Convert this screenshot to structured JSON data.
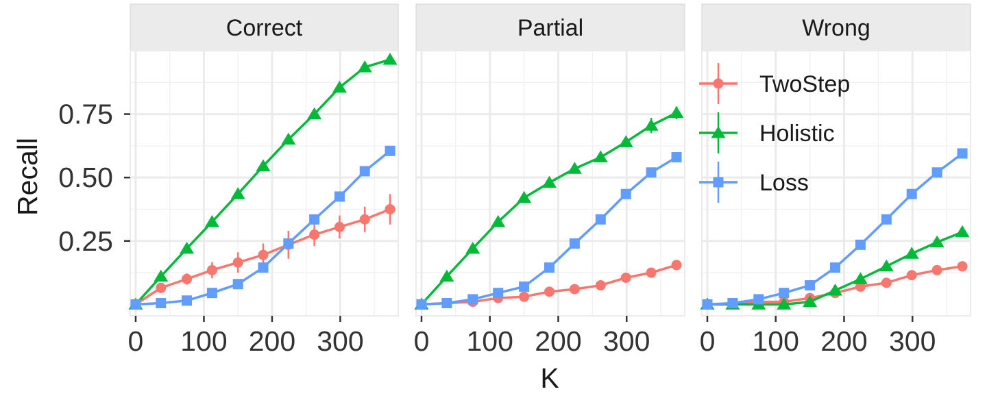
{
  "chart_data": {
    "type": "line",
    "xlabel": "K",
    "ylabel": "Recall",
    "xlim": [
      -8,
      385
    ],
    "ylim": [
      -0.045,
      1.0
    ],
    "x_ticks": [
      0,
      100,
      200,
      300
    ],
    "x_tick_labels": [
      "0",
      "100",
      "200",
      "300"
    ],
    "y_ticks": [
      0.25,
      0.5,
      0.75
    ],
    "y_tick_labels": [
      "0.25",
      "0.50",
      "0.75"
    ],
    "grid": true,
    "legend_position": "inside-right",
    "legend": [
      {
        "name": "TwoStep",
        "color": "#F8766D",
        "marker": "circle"
      },
      {
        "name": "Holistic",
        "color": "#00BA38",
        "marker": "triangle"
      },
      {
        "name": "Loss",
        "color": "#619CFF",
        "marker": "square"
      }
    ],
    "x": [
      0,
      37,
      75,
      112,
      150,
      187,
      224,
      262,
      299,
      336,
      373
    ],
    "panels": [
      {
        "title": "Correct",
        "series": [
          {
            "name": "TwoStep",
            "values": [
              0.0,
              0.065,
              0.1,
              0.135,
              0.165,
              0.195,
              0.235,
              0.275,
              0.305,
              0.335,
              0.375
            ],
            "error": [
              0.0,
              0.012,
              0.022,
              0.032,
              0.04,
              0.045,
              0.055,
              0.045,
              0.045,
              0.05,
              0.06
            ]
          },
          {
            "name": "Holistic",
            "values": [
              0.0,
              0.11,
              0.22,
              0.325,
              0.435,
              0.545,
              0.65,
              0.75,
              0.855,
              0.935,
              0.965
            ],
            "error": [
              0.0,
              0.0,
              0.0,
              0.0,
              0.0,
              0.0,
              0.0,
              0.0,
              0.0,
              0.0,
              0.0
            ]
          },
          {
            "name": "Loss",
            "values": [
              0.0,
              0.005,
              0.015,
              0.045,
              0.08,
              0.145,
              0.24,
              0.335,
              0.425,
              0.525,
              0.605
            ],
            "error": [
              0.0,
              0.0,
              0.0,
              0.0,
              0.0,
              0.0,
              0.0,
              0.0,
              0.0,
              0.0,
              0.0
            ]
          }
        ]
      },
      {
        "title": "Partial",
        "series": [
          {
            "name": "TwoStep",
            "values": [
              0.0,
              0.005,
              0.01,
              0.025,
              0.03,
              0.05,
              0.06,
              0.075,
              0.105,
              0.125,
              0.155
            ],
            "error": [
              0.0,
              0.0,
              0.0,
              0.0,
              0.0,
              0.0,
              0.0,
              0.0,
              0.0,
              0.0,
              0.0
            ]
          },
          {
            "name": "Holistic",
            "values": [
              0.0,
              0.11,
              0.22,
              0.325,
              0.42,
              0.48,
              0.535,
              0.58,
              0.64,
              0.705,
              0.755
            ],
            "error": [
              0.0,
              0.0,
              0.0,
              0.0,
              0.0,
              0.0,
              0.0,
              0.02,
              0.02,
              0.03,
              0.025
            ]
          },
          {
            "name": "Loss",
            "values": [
              0.0,
              0.005,
              0.02,
              0.045,
              0.07,
              0.145,
              0.24,
              0.335,
              0.435,
              0.52,
              0.58
            ],
            "error": [
              0.0,
              0.0,
              0.0,
              0.0,
              0.0,
              0.0,
              0.0,
              0.0,
              0.0,
              0.0,
              0.0
            ]
          }
        ]
      },
      {
        "title": "Wrong",
        "series": [
          {
            "name": "TwoStep",
            "values": [
              0.0,
              0.002,
              0.01,
              0.01,
              0.025,
              0.045,
              0.07,
              0.085,
              0.115,
              0.135,
              0.15
            ],
            "error": [
              0.0,
              0.0,
              0.0,
              0.0,
              0.0,
              0.0,
              0.0,
              0.0,
              0.0,
              0.0,
              0.0
            ]
          },
          {
            "name": "Holistic",
            "values": [
              0.0,
              0.0,
              0.0,
              0.0,
              0.01,
              0.055,
              0.1,
              0.15,
              0.2,
              0.245,
              0.285
            ],
            "error": [
              0.0,
              0.0,
              0.0,
              0.0,
              0.0,
              0.0,
              0.0,
              0.02,
              0.0,
              0.0,
              0.0
            ]
          },
          {
            "name": "Loss",
            "values": [
              0.0,
              0.005,
              0.02,
              0.045,
              0.075,
              0.145,
              0.235,
              0.335,
              0.435,
              0.52,
              0.595
            ],
            "error": [
              0.0,
              0.0,
              0.0,
              0.0,
              0.0,
              0.0,
              0.0,
              0.0,
              0.0,
              0.0,
              0.0
            ]
          }
        ]
      }
    ]
  }
}
